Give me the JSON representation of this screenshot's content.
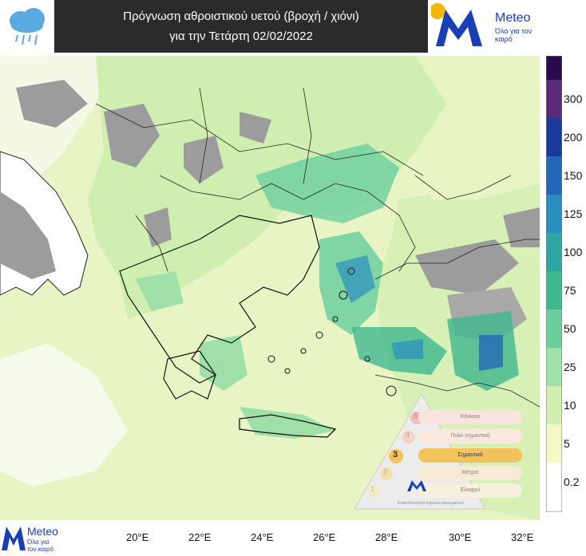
{
  "header": {
    "title_line1": "Πρόγνωση αθροιστικού υετού (βροχή / χιόνι)",
    "title_line2": "για την Τετάρτη 02/02/2022",
    "weather_icon": "cloud-rain-snow-icon"
  },
  "brand": {
    "name": "Meteo",
    "tagline": "Όλα για τον καιρό",
    "logo_letter": "M",
    "color": "#1a3fb5"
  },
  "colorbar": {
    "ticks": [
      "0.2",
      "5",
      "10",
      "25",
      "50",
      "75",
      "100",
      "125",
      "150",
      "200",
      "300"
    ],
    "colors": [
      "#ffffff",
      "#f3f8c4",
      "#cfeeb0",
      "#9fe0a8",
      "#6ccf9f",
      "#3fb890",
      "#2ea7a3",
      "#2a8fc0",
      "#2469b8",
      "#1a3a9a",
      "#5b2a7a",
      "#2a0a4a"
    ]
  },
  "map": {
    "longitude_labels": [
      "20°E",
      "22°E",
      "24°E",
      "26°E",
      "28°E",
      "30°E",
      "32°E"
    ],
    "land_colors": {
      "no_data": "#9c9c9c",
      "sea_light": "#e8f4c4"
    }
  },
  "inset": {
    "rows": [
      "Κόκκινο",
      "Πολύ σημαντικό",
      "Σημαντικό",
      "Μέτριο",
      "Ελαφρύ"
    ],
    "highlight_level": "3",
    "levels": [
      "5",
      "4",
      "3",
      "2",
      "1"
    ],
    "caption": "Επικινδυνότητα καιρικών φαινομένων"
  }
}
